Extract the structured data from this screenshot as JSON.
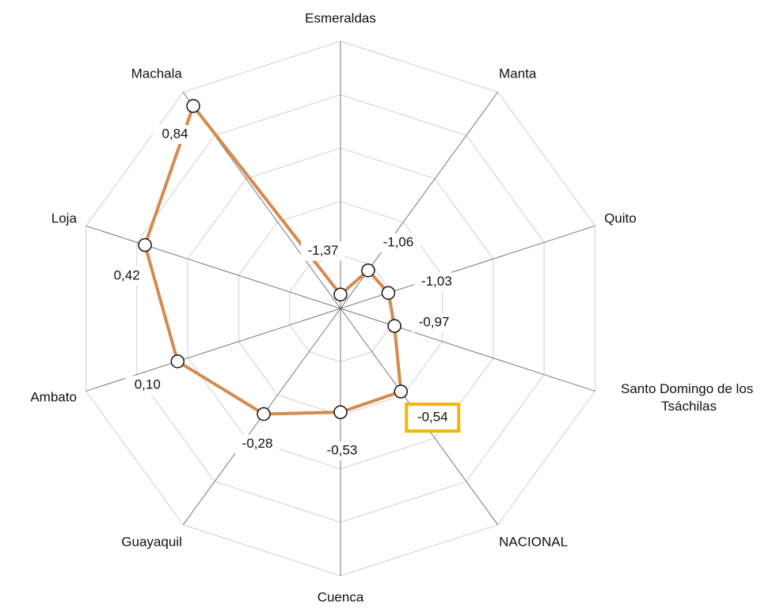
{
  "chart_data": {
    "type": "radar",
    "categories": [
      "Esmeraldas",
      "Manta",
      "Quito",
      "Santo Domingo de los Tsáchilas",
      "NACIONAL",
      "Cuenca",
      "Guayaquil",
      "Ambato",
      "Loja",
      "Machala"
    ],
    "series": [
      {
        "color": "#d58a4e",
        "values": [
          -1.37,
          -1.06,
          -1.03,
          -0.97,
          -0.54,
          -0.53,
          -0.28,
          0.1,
          0.42,
          0.84
        ],
        "value_labels": [
          "-1,37",
          "-1,06",
          "-1,03",
          "-0,97",
          "-0,54",
          "-0,53",
          "-0,28",
          "0,10",
          "0,42",
          "0,84"
        ]
      }
    ],
    "ylim": [
      -1.5,
      1.0
    ],
    "yticks": [
      -1.5,
      -1.0,
      -0.5,
      0,
      0.5,
      1.0
    ],
    "highlight_index": 4,
    "highlight_color": "#f2b705"
  }
}
